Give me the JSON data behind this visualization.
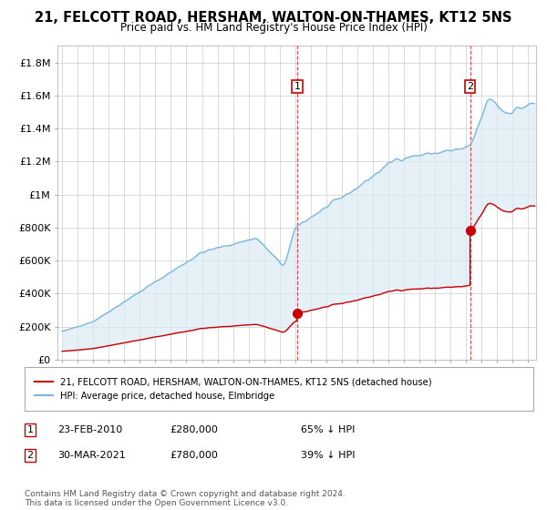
{
  "title": "21, FELCOTT ROAD, HERSHAM, WALTON-ON-THAMES, KT12 5NS",
  "subtitle": "Price paid vs. HM Land Registry's House Price Index (HPI)",
  "ylim": [
    0,
    1900000
  ],
  "yticks": [
    0,
    200000,
    400000,
    600000,
    800000,
    1000000,
    1200000,
    1400000,
    1600000,
    1800000
  ],
  "ytick_labels": [
    "£0",
    "£200K",
    "£400K",
    "£600K",
    "£800K",
    "£1M",
    "£1.2M",
    "£1.4M",
    "£1.6M",
    "£1.8M"
  ],
  "xlim_start": 1994.7,
  "xlim_end": 2025.5,
  "hpi_color": "#7ab8d9",
  "hpi_fill_color": "#daeaf5",
  "price_color": "#cc0000",
  "marker1_date": 2010.14,
  "marker1_price": 280000,
  "marker2_date": 2021.25,
  "marker2_price": 780000,
  "legend_price_label": "21, FELCOTT ROAD, HERSHAM, WALTON-ON-THAMES, KT12 5NS (detached house)",
  "legend_hpi_label": "HPI: Average price, detached house, Elmbridge",
  "annotation1_label": "1",
  "annotation1_date_str": "23-FEB-2010",
  "annotation1_price_str": "£280,000",
  "annotation1_pct": "65% ↓ HPI",
  "annotation2_label": "2",
  "annotation2_date_str": "30-MAR-2021",
  "annotation2_price_str": "£780,000",
  "annotation2_pct": "39% ↓ HPI",
  "footer": "Contains HM Land Registry data © Crown copyright and database right 2024.\nThis data is licensed under the Open Government Licence v3.0.",
  "bg_color": "#ffffff",
  "grid_color": "#cccccc"
}
